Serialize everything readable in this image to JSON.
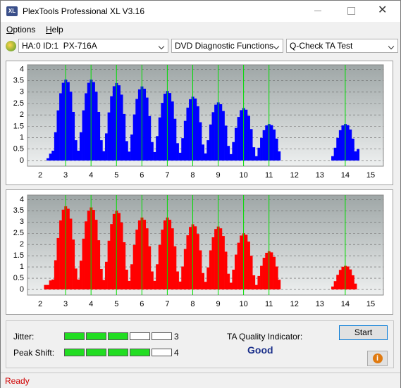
{
  "window": {
    "title": "PlexTools Professional XL V3.16"
  },
  "menu": [
    "Options",
    "Help"
  ],
  "toolbar": {
    "drive": "HA:0 ID:1  PX-716A",
    "function": "DVD Diagnostic Functions",
    "test": "Q-Check TA Test"
  },
  "chart_data": [
    {
      "type": "bar",
      "color": "#0000ff",
      "x": [
        2,
        2.1,
        2.2,
        2.3,
        2.4,
        2.5,
        2.6,
        2.7,
        2.8,
        2.9,
        3,
        3.1,
        3.2,
        3.3,
        3.4,
        3.5,
        3.6,
        3.7,
        3.8,
        3.9,
        4,
        4.1,
        4.2,
        4.3,
        4.4,
        4.5,
        4.6,
        4.7,
        4.8,
        4.9,
        5,
        5.1,
        5.2,
        5.3,
        5.4,
        5.5,
        5.6,
        5.7,
        5.8,
        5.9,
        6,
        6.1,
        6.2,
        6.3,
        6.4,
        6.5,
        6.6,
        6.7,
        6.8,
        6.9,
        7,
        7.1,
        7.2,
        7.3,
        7.4,
        7.5,
        7.6,
        7.7,
        7.8,
        7.9,
        8,
        8.1,
        8.2,
        8.3,
        8.4,
        8.5,
        8.6,
        8.7,
        8.8,
        8.9,
        9,
        9.1,
        9.2,
        9.3,
        9.4,
        9.5,
        9.6,
        9.7,
        9.8,
        9.9,
        10,
        10.1,
        10.2,
        10.3,
        10.4,
        10.5,
        10.6,
        10.7,
        10.8,
        10.9,
        11,
        11.1,
        11.2,
        11.3,
        11.4,
        11.5,
        11.6,
        11.7,
        11.8,
        11.9,
        12,
        12.1,
        12.2,
        12.3,
        12.4,
        12.5,
        12.6,
        12.7,
        12.8,
        12.9,
        13,
        13.1,
        13.2,
        13.3,
        13.4,
        13.5,
        13.6,
        13.7,
        13.8,
        13.9,
        14,
        14.1,
        14.2,
        14.3,
        14.4,
        14.5
      ],
      "values": [
        0,
        0,
        0,
        0.1,
        0.3,
        0.43,
        1.24,
        2.2,
        2.95,
        3.41,
        3.55,
        3.44,
        3.02,
        2.13,
        0.89,
        0.43,
        1.24,
        2.2,
        2.95,
        3.41,
        3.55,
        3.44,
        3.02,
        2.13,
        0.89,
        0.41,
        1.19,
        2.11,
        2.82,
        3.26,
        3.4,
        3.3,
        2.89,
        2.04,
        0.85,
        0.39,
        1.14,
        2.02,
        2.7,
        3.12,
        3.25,
        3.15,
        2.76,
        1.95,
        0.81,
        0.37,
        1.07,
        1.89,
        2.53,
        2.93,
        3.05,
        2.96,
        2.59,
        1.83,
        0.76,
        0.34,
        0.98,
        1.74,
        2.32,
        2.69,
        2.8,
        2.72,
        2.38,
        1.68,
        0.7,
        0.31,
        0.89,
        1.58,
        2.12,
        2.45,
        2.55,
        2.47,
        2.17,
        1.53,
        0.64,
        0.28,
        0.81,
        1.43,
        1.91,
        2.21,
        2.3,
        2.23,
        1.96,
        1.38,
        0.58,
        0.19,
        0.56,
        0.99,
        1.33,
        1.54,
        1.6,
        1.55,
        1.36,
        0.96,
        0.4,
        0,
        0,
        0,
        0,
        0,
        0,
        0,
        0,
        0,
        0,
        0,
        0,
        0,
        0,
        0,
        0,
        0,
        0,
        0,
        0,
        0.19,
        0.56,
        0.99,
        1.33,
        1.54,
        1.6,
        1.55,
        1.36,
        0.96,
        0.4,
        0.5
      ],
      "xlim": [
        1.5,
        15.5
      ],
      "ylim": [
        -0.25,
        4.2
      ],
      "xticks": [
        2,
        3,
        4,
        5,
        6,
        7,
        8,
        9,
        10,
        11,
        12,
        13,
        14,
        15
      ],
      "yticks": [
        0,
        0.5,
        1,
        1.5,
        2,
        2.5,
        3,
        3.5,
        4
      ],
      "grid": true,
      "reference_lines": [
        3,
        4,
        5,
        6,
        7,
        8,
        9,
        10,
        11,
        14
      ],
      "reference_color": "#00dd00"
    },
    {
      "type": "bar",
      "color": "#ff0000",
      "x": [
        2,
        2.1,
        2.2,
        2.3,
        2.4,
        2.5,
        2.6,
        2.7,
        2.8,
        2.9,
        3,
        3.1,
        3.2,
        3.3,
        3.4,
        3.5,
        3.6,
        3.7,
        3.8,
        3.9,
        4,
        4.1,
        4.2,
        4.3,
        4.4,
        4.5,
        4.6,
        4.7,
        4.8,
        4.9,
        5,
        5.1,
        5.2,
        5.3,
        5.4,
        5.5,
        5.6,
        5.7,
        5.8,
        5.9,
        6,
        6.1,
        6.2,
        6.3,
        6.4,
        6.5,
        6.6,
        6.7,
        6.8,
        6.9,
        7,
        7.1,
        7.2,
        7.3,
        7.4,
        7.5,
        7.6,
        7.7,
        7.8,
        7.9,
        8,
        8.1,
        8.2,
        8.3,
        8.4,
        8.5,
        8.6,
        8.7,
        8.8,
        8.9,
        9,
        9.1,
        9.2,
        9.3,
        9.4,
        9.5,
        9.6,
        9.7,
        9.8,
        9.9,
        10,
        10.1,
        10.2,
        10.3,
        10.4,
        10.5,
        10.6,
        10.7,
        10.8,
        10.9,
        11,
        11.1,
        11.2,
        11.3,
        11.4,
        11.5,
        11.6,
        11.7,
        11.8,
        11.9,
        12,
        12.1,
        12.2,
        12.3,
        12.4,
        12.5,
        12.6,
        12.7,
        12.8,
        12.9,
        13,
        13.1,
        13.2,
        13.3,
        13.4,
        13.5,
        13.6,
        13.7,
        13.8,
        13.9,
        14,
        14.1,
        14.2,
        14.3,
        14.4,
        14.5
      ],
      "values": [
        0,
        0,
        0.2,
        0.2,
        0.4,
        0.44,
        1.3,
        2.29,
        3.07,
        3.55,
        3.7,
        3.59,
        3.15,
        2.22,
        0.93,
        0.44,
        1.28,
        2.26,
        3.03,
        3.5,
        3.65,
        3.54,
        3.1,
        2.19,
        0.91,
        0.42,
        1.23,
        2.17,
        2.91,
        3.36,
        3.5,
        3.4,
        2.98,
        2.1,
        0.88,
        0.38,
        1.12,
        1.98,
        2.66,
        3.07,
        3.2,
        3.1,
        2.72,
        1.92,
        0.8,
        0.38,
        1.12,
        1.98,
        2.66,
        3.07,
        3.2,
        3.1,
        2.72,
        1.92,
        0.8,
        0.35,
        1.02,
        1.8,
        2.41,
        2.78,
        2.9,
        2.81,
        2.47,
        1.74,
        0.73,
        0.34,
        0.98,
        1.74,
        2.32,
        2.69,
        2.8,
        2.72,
        2.38,
        1.68,
        0.7,
        0.3,
        0.88,
        1.55,
        2.08,
        2.4,
        2.5,
        2.43,
        2.13,
        1.5,
        0.63,
        0.2,
        0.6,
        1.05,
        1.41,
        1.63,
        1.7,
        1.65,
        1.45,
        1.02,
        0.43,
        0,
        0,
        0,
        0,
        0,
        0,
        0,
        0,
        0,
        0,
        0,
        0,
        0,
        0,
        0,
        0,
        0,
        0,
        0,
        0,
        0.13,
        0.37,
        0.65,
        0.87,
        1.01,
        1.05,
        1.02,
        0.89,
        0.63,
        0.26,
        0
      ],
      "xlim": [
        1.5,
        15.5
      ],
      "ylim": [
        -0.25,
        4.2
      ],
      "xticks": [
        2,
        3,
        4,
        5,
        6,
        7,
        8,
        9,
        10,
        11,
        12,
        13,
        14,
        15
      ],
      "yticks": [
        0,
        0.5,
        1,
        1.5,
        2,
        2.5,
        3,
        3.5,
        4
      ],
      "grid": true,
      "reference_lines": [
        3,
        4,
        5,
        6,
        7,
        8,
        9,
        10,
        11,
        14
      ],
      "reference_color": "#00dd00"
    }
  ],
  "quality": {
    "jitter_label": "Jitter:",
    "jitter": 3,
    "peak_shift_label": "Peak Shift:",
    "peak_shift": 4,
    "indicator_label": "TA Quality Indicator:",
    "indicator": "Good"
  },
  "buttons": {
    "start": "Start"
  },
  "status": "Ready"
}
